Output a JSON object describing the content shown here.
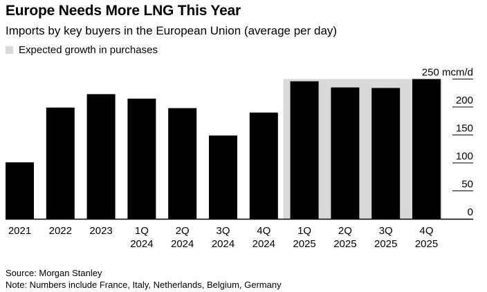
{
  "header": {
    "title": "Europe Needs More LNG This Year",
    "subtitle": "Imports by key buyers in the European Union (average per day)",
    "legend_label": "Expected growth in purchases"
  },
  "footer": {
    "source": "Source: Morgan Stanley",
    "note": "Note: Numbers include France, Italy, Netherlands, Belgium, Germany"
  },
  "colors": {
    "bar": "#000000",
    "highlight": "#d9d9d9",
    "grid": "#000000"
  },
  "chart_data": {
    "type": "bar",
    "title": "Europe Needs More LNG This Year",
    "subtitle": "Imports by key buyers in the European Union (average per day)",
    "categories": [
      [
        "2021"
      ],
      [
        "2022"
      ],
      [
        "2023"
      ],
      [
        "1Q",
        "2024"
      ],
      [
        "2Q",
        "2024"
      ],
      [
        "3Q",
        "2024"
      ],
      [
        "4Q",
        "2024"
      ],
      [
        "1Q",
        "2025"
      ],
      [
        "2Q",
        "2025"
      ],
      [
        "3Q",
        "2025"
      ],
      [
        "4Q",
        "2025"
      ]
    ],
    "values": [
      101,
      199,
      223,
      215,
      198,
      149,
      190,
      246,
      235,
      234,
      250
    ],
    "highlight_range": {
      "from_index": 7,
      "to_index": 10,
      "label": "Expected growth in purchases"
    },
    "y_ticks": [
      {
        "value": 250,
        "label": "250 mcm/d"
      },
      {
        "value": 200,
        "label": "200"
      },
      {
        "value": 150,
        "label": "150"
      },
      {
        "value": 100,
        "label": "100"
      },
      {
        "value": 50,
        "label": "50"
      },
      {
        "value": 0,
        "label": "0"
      }
    ],
    "ylim": [
      0,
      250
    ],
    "xlabel": "",
    "ylabel": "mcm/d",
    "axis_side": "right"
  }
}
